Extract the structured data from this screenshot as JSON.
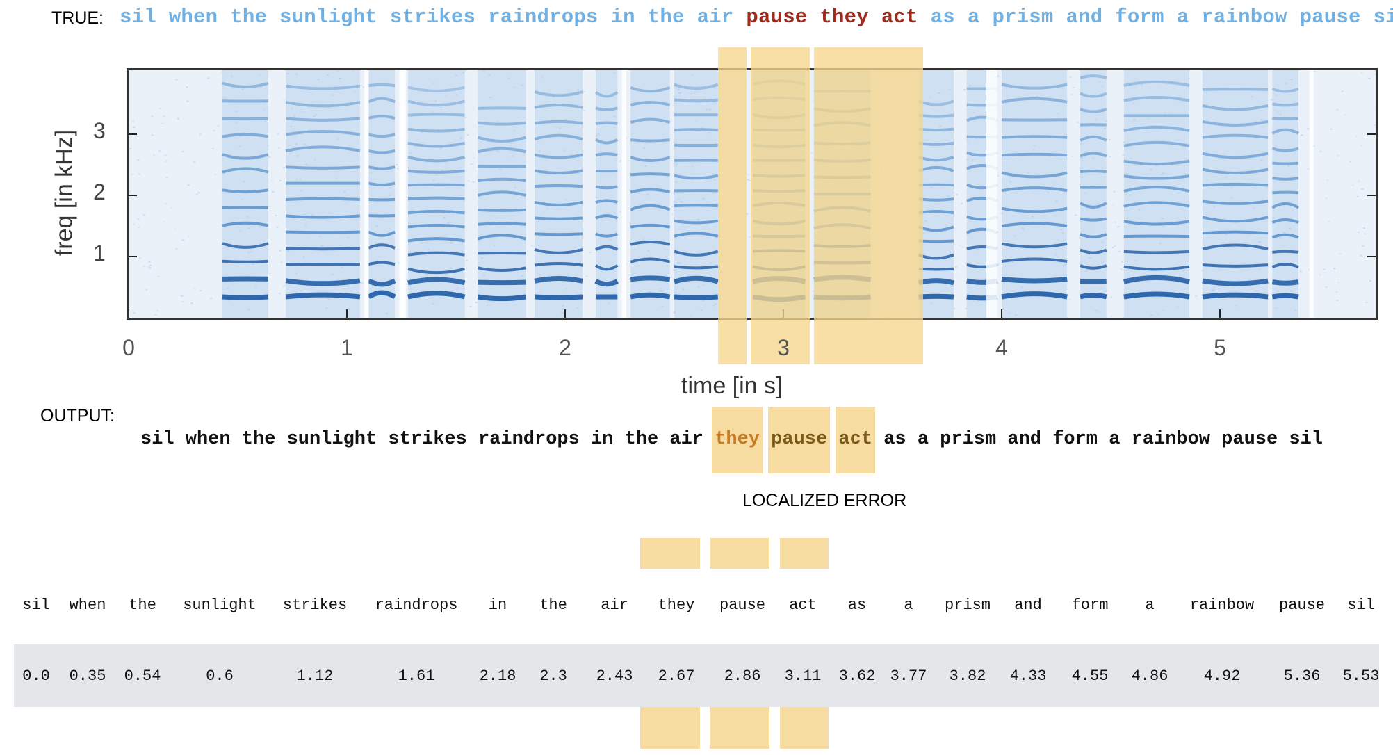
{
  "true_label": "TRUE:",
  "true_words": [
    {
      "text": "sil",
      "error": false
    },
    {
      "text": "when",
      "error": false
    },
    {
      "text": "the",
      "error": false
    },
    {
      "text": "sunlight",
      "error": false
    },
    {
      "text": "strikes",
      "error": false
    },
    {
      "text": "raindrops",
      "error": false
    },
    {
      "text": "in",
      "error": false
    },
    {
      "text": "the",
      "error": false
    },
    {
      "text": "air",
      "error": false
    },
    {
      "text": "pause",
      "error": true
    },
    {
      "text": "they",
      "error": true
    },
    {
      "text": "act",
      "error": true
    },
    {
      "text": "as",
      "error": false
    },
    {
      "text": "a",
      "error": false
    },
    {
      "text": "prism",
      "error": false
    },
    {
      "text": "and",
      "error": false
    },
    {
      "text": "form",
      "error": false
    },
    {
      "text": "a",
      "error": false
    },
    {
      "text": "rainbow",
      "error": false
    },
    {
      "text": "pause",
      "error": false
    },
    {
      "text": "sil",
      "error": false
    }
  ],
  "spectrogram": {
    "xlabel": "time [in s]",
    "ylabel": "freq [in kHz]",
    "x_ticks": [
      "0",
      "1",
      "2",
      "3",
      "4",
      "5"
    ],
    "y_ticks": [
      "3",
      "2",
      "1"
    ],
    "xlim": [
      0,
      5.8
    ],
    "ylim": [
      0,
      4
    ],
    "highlight_spans_s": [
      [
        2.7,
        2.83
      ],
      [
        2.85,
        3.12
      ],
      [
        3.14,
        3.64
      ]
    ],
    "colors": {
      "spectrum_dark": "#1f5fa8",
      "spectrum_light": "#dbe8f5",
      "highlight": "#f5d68c"
    }
  },
  "output_label": "OUTPUT:",
  "output_words": [
    {
      "text": "sil",
      "error": false
    },
    {
      "text": "when",
      "error": false
    },
    {
      "text": "the",
      "error": false
    },
    {
      "text": "sunlight",
      "error": false
    },
    {
      "text": "strikes",
      "error": false
    },
    {
      "text": "raindrops",
      "error": false
    },
    {
      "text": "in",
      "error": false
    },
    {
      "text": "the",
      "error": false
    },
    {
      "text": "air",
      "error": false
    },
    {
      "text": "they",
      "error": true
    },
    {
      "text": "pause",
      "error": true
    },
    {
      "text": "act",
      "error": true
    },
    {
      "text": "as",
      "error": false
    },
    {
      "text": "a",
      "error": false
    },
    {
      "text": "prism",
      "error": false
    },
    {
      "text": "and",
      "error": false
    },
    {
      "text": "form",
      "error": false
    },
    {
      "text": "a",
      "error": false
    },
    {
      "text": "rainbow",
      "error": false
    },
    {
      "text": "pause",
      "error": false
    },
    {
      "text": "sil",
      "error": false
    }
  ],
  "localized_error_label": "LOCALIZED ERROR",
  "alignment_table": {
    "words": [
      "sil",
      "when",
      "the",
      "sunlight",
      "strikes",
      "raindrops",
      "in",
      "the",
      "air",
      "they",
      "pause",
      "act",
      "as",
      "a",
      "prism",
      "and",
      "form",
      "a",
      "rainbow",
      "pause",
      "sil"
    ],
    "times": [
      "0.0",
      "0.35",
      "0.54",
      "0.6",
      "1.12",
      "1.61",
      "2.18",
      "2.3",
      "2.43",
      "2.67",
      "2.86",
      "3.11",
      "3.62",
      "3.77",
      "3.82",
      "4.33",
      "4.55",
      "4.86",
      "4.92",
      "5.36",
      "5.53"
    ],
    "error_indices": [
      9,
      10,
      11
    ]
  }
}
